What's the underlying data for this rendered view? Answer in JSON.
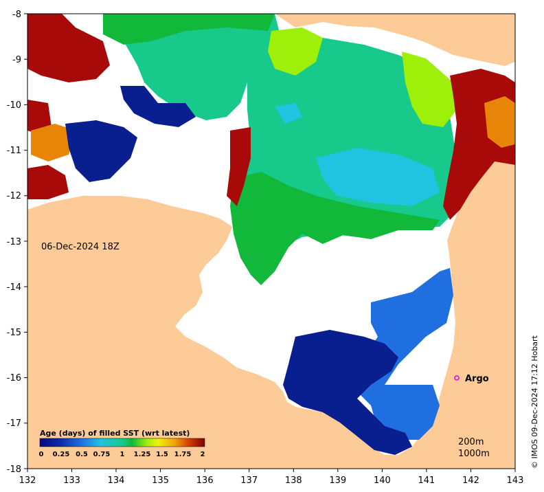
{
  "map": {
    "date_label": "06-Dec-2024 18Z",
    "argo_label": "Argo",
    "depth_labels": [
      "200m",
      "1000m"
    ],
    "credit": "© IMOS 09-Dec-2024 17:12 Hobart",
    "x_ticks": [
      "132",
      "133",
      "134",
      "135",
      "136",
      "137",
      "138",
      "139",
      "140",
      "141",
      "142",
      "143"
    ],
    "y_ticks": [
      "-8",
      "-9",
      "-10",
      "-11",
      "-12",
      "-13",
      "-14",
      "-15",
      "-16",
      "-17",
      "-18"
    ],
    "legend": {
      "title": "Age (days) of filled SST (wrt latest)",
      "ticks": [
        "0",
        "0.25",
        "0.5",
        "0.75",
        "1",
        "1.25",
        "1.5",
        "1.75",
        "2"
      ]
    },
    "colors": {
      "land": "#fccb97",
      "nodata": "#ffffff",
      "age_0": "#0a1f8f",
      "age_0_5": "#1f6fe0",
      "age_0_75": "#22c3e0",
      "age_1": "#17c98a",
      "age_1_1": "#11b83a",
      "age_1_5": "#9ef00a",
      "age_1_75": "#e88508",
      "age_2": "#a80a0a",
      "argo_marker": "#e000e0"
    }
  }
}
